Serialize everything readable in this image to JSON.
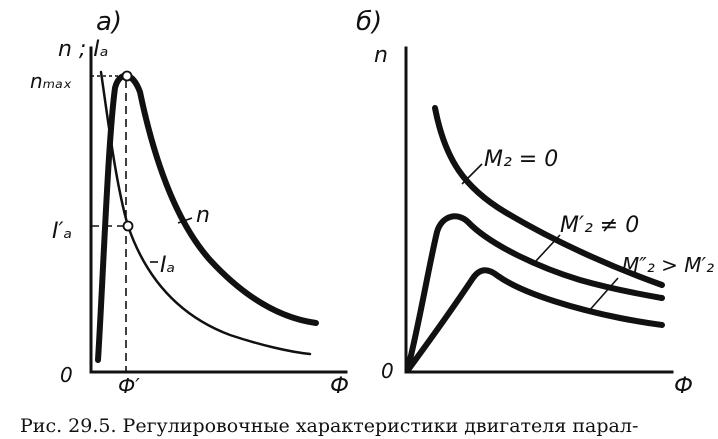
{
  "panel_a": {
    "label": "а)",
    "y_axis_label": "n ; Iₐ",
    "tick_nmax": "nₘₐₓ",
    "tick_ia_prime": "I′ₐ",
    "origin": "0",
    "x_tick_phi_prime": "Ф′",
    "x_axis_label": "Ф",
    "curve_n_label": "n",
    "curve_ia_label": "Iₐ"
  },
  "panel_b": {
    "label": "б)",
    "y_axis_label": "n",
    "origin": "0",
    "x_axis_label": "Ф",
    "curve_1_label": "M₂ = 0",
    "curve_2_label": "M′₂ ≠ 0",
    "curve_3_label": "M″₂ > M′₂"
  },
  "caption": "Рис. 29.5. Регулировочные характеристики двигателя парал-"
}
